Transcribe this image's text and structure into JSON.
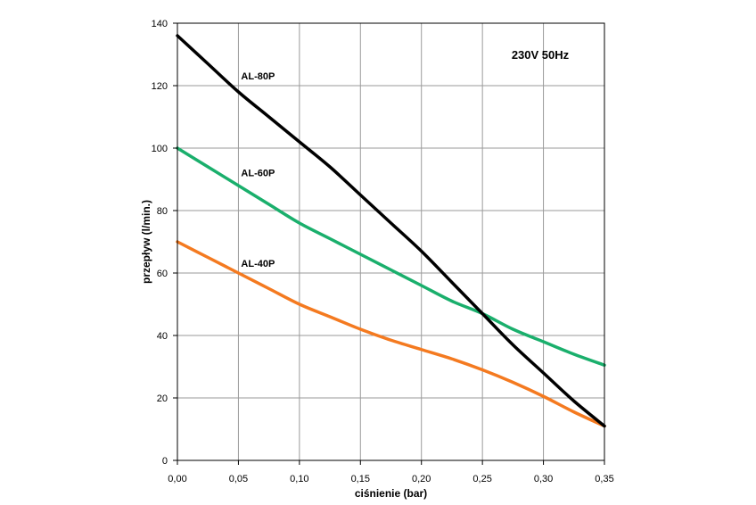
{
  "chart_data": {
    "type": "line",
    "title": "",
    "annotation": "230V 50Hz",
    "xlabel": "ciśnienie (bar)",
    "ylabel": "przepływ (l/min.)",
    "xlim": [
      0,
      0.35
    ],
    "ylim": [
      0,
      140
    ],
    "xticks": [
      0,
      0.05,
      0.1,
      0.15,
      0.2,
      0.25,
      0.3,
      0.35
    ],
    "xtick_labels": [
      "0,00",
      "0,05",
      "0,10",
      "0,15",
      "0,20",
      "0,25",
      "0,30",
      "0,35"
    ],
    "yticks": [
      0,
      20,
      40,
      60,
      80,
      100,
      120,
      140
    ],
    "ytick_labels": [
      "0",
      "20",
      "40",
      "60",
      "80",
      "100",
      "120",
      "140"
    ],
    "grid": true,
    "series": [
      {
        "name": "AL-80P",
        "color": "#000000",
        "x": [
          0,
          0.025,
          0.05,
          0.075,
          0.1,
          0.125,
          0.15,
          0.175,
          0.2,
          0.225,
          0.25,
          0.275,
          0.3,
          0.325,
          0.35
        ],
        "y": [
          136,
          127,
          118,
          110,
          102,
          94,
          85,
          76,
          67,
          57,
          47,
          37,
          28,
          19,
          11
        ],
        "label_at": [
          0.05,
          122
        ]
      },
      {
        "name": "AL-60P",
        "color": "#1aaf6c",
        "x": [
          0,
          0.025,
          0.05,
          0.075,
          0.1,
          0.125,
          0.15,
          0.175,
          0.2,
          0.225,
          0.25,
          0.275,
          0.3,
          0.325,
          0.35
        ],
        "y": [
          100,
          94,
          88,
          82,
          76,
          71,
          66,
          61,
          56,
          51,
          47,
          42,
          38,
          34,
          30.5
        ],
        "label_at": [
          0.05,
          91
        ]
      },
      {
        "name": "AL-40P",
        "color": "#f47a20",
        "x": [
          0,
          0.025,
          0.05,
          0.075,
          0.1,
          0.125,
          0.15,
          0.175,
          0.2,
          0.225,
          0.25,
          0.275,
          0.3,
          0.325,
          0.35
        ],
        "y": [
          70,
          65,
          60,
          55,
          50,
          46,
          42,
          38.5,
          35.5,
          32.5,
          29,
          25,
          20.5,
          15.5,
          11
        ],
        "label_at": [
          0.05,
          62
        ]
      }
    ]
  }
}
